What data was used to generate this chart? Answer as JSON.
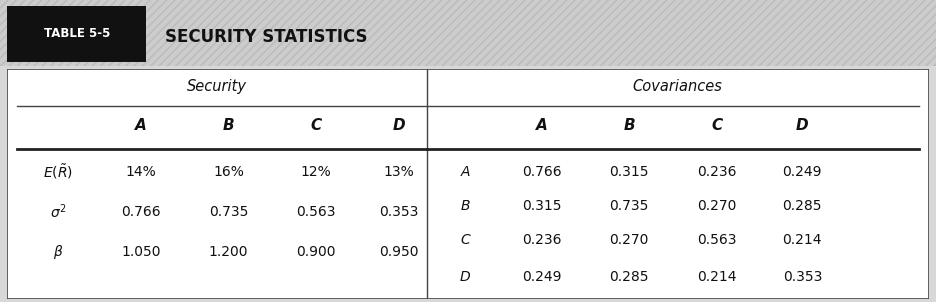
{
  "title_label": "TABLE 5-5",
  "title_text": "SECURITY STATISTICS",
  "header_section_left": "Security",
  "header_section_right": "Covariances",
  "col_headers_left": [
    "A",
    "B",
    "C",
    "D"
  ],
  "col_headers_right": [
    "A",
    "B",
    "C",
    "D"
  ],
  "left_data": [
    [
      "14%",
      "16%",
      "12%",
      "13%"
    ],
    [
      "0.766",
      "0.735",
      "0.563",
      "0.353"
    ],
    [
      "1.050",
      "1.200",
      "0.900",
      "0.950"
    ]
  ],
  "cov_row_labels": [
    "A",
    "B",
    "C",
    "D"
  ],
  "right_data": [
    [
      "0.766",
      "0.315",
      "0.236",
      "0.249"
    ],
    [
      "0.315",
      "0.735",
      "0.270",
      "0.285"
    ],
    [
      "0.236",
      "0.270",
      "0.563",
      "0.214"
    ],
    [
      "0.249",
      "0.285",
      "0.214",
      "0.353"
    ]
  ],
  "fig_width": 9.36,
  "fig_height": 3.02,
  "dpi": 100
}
